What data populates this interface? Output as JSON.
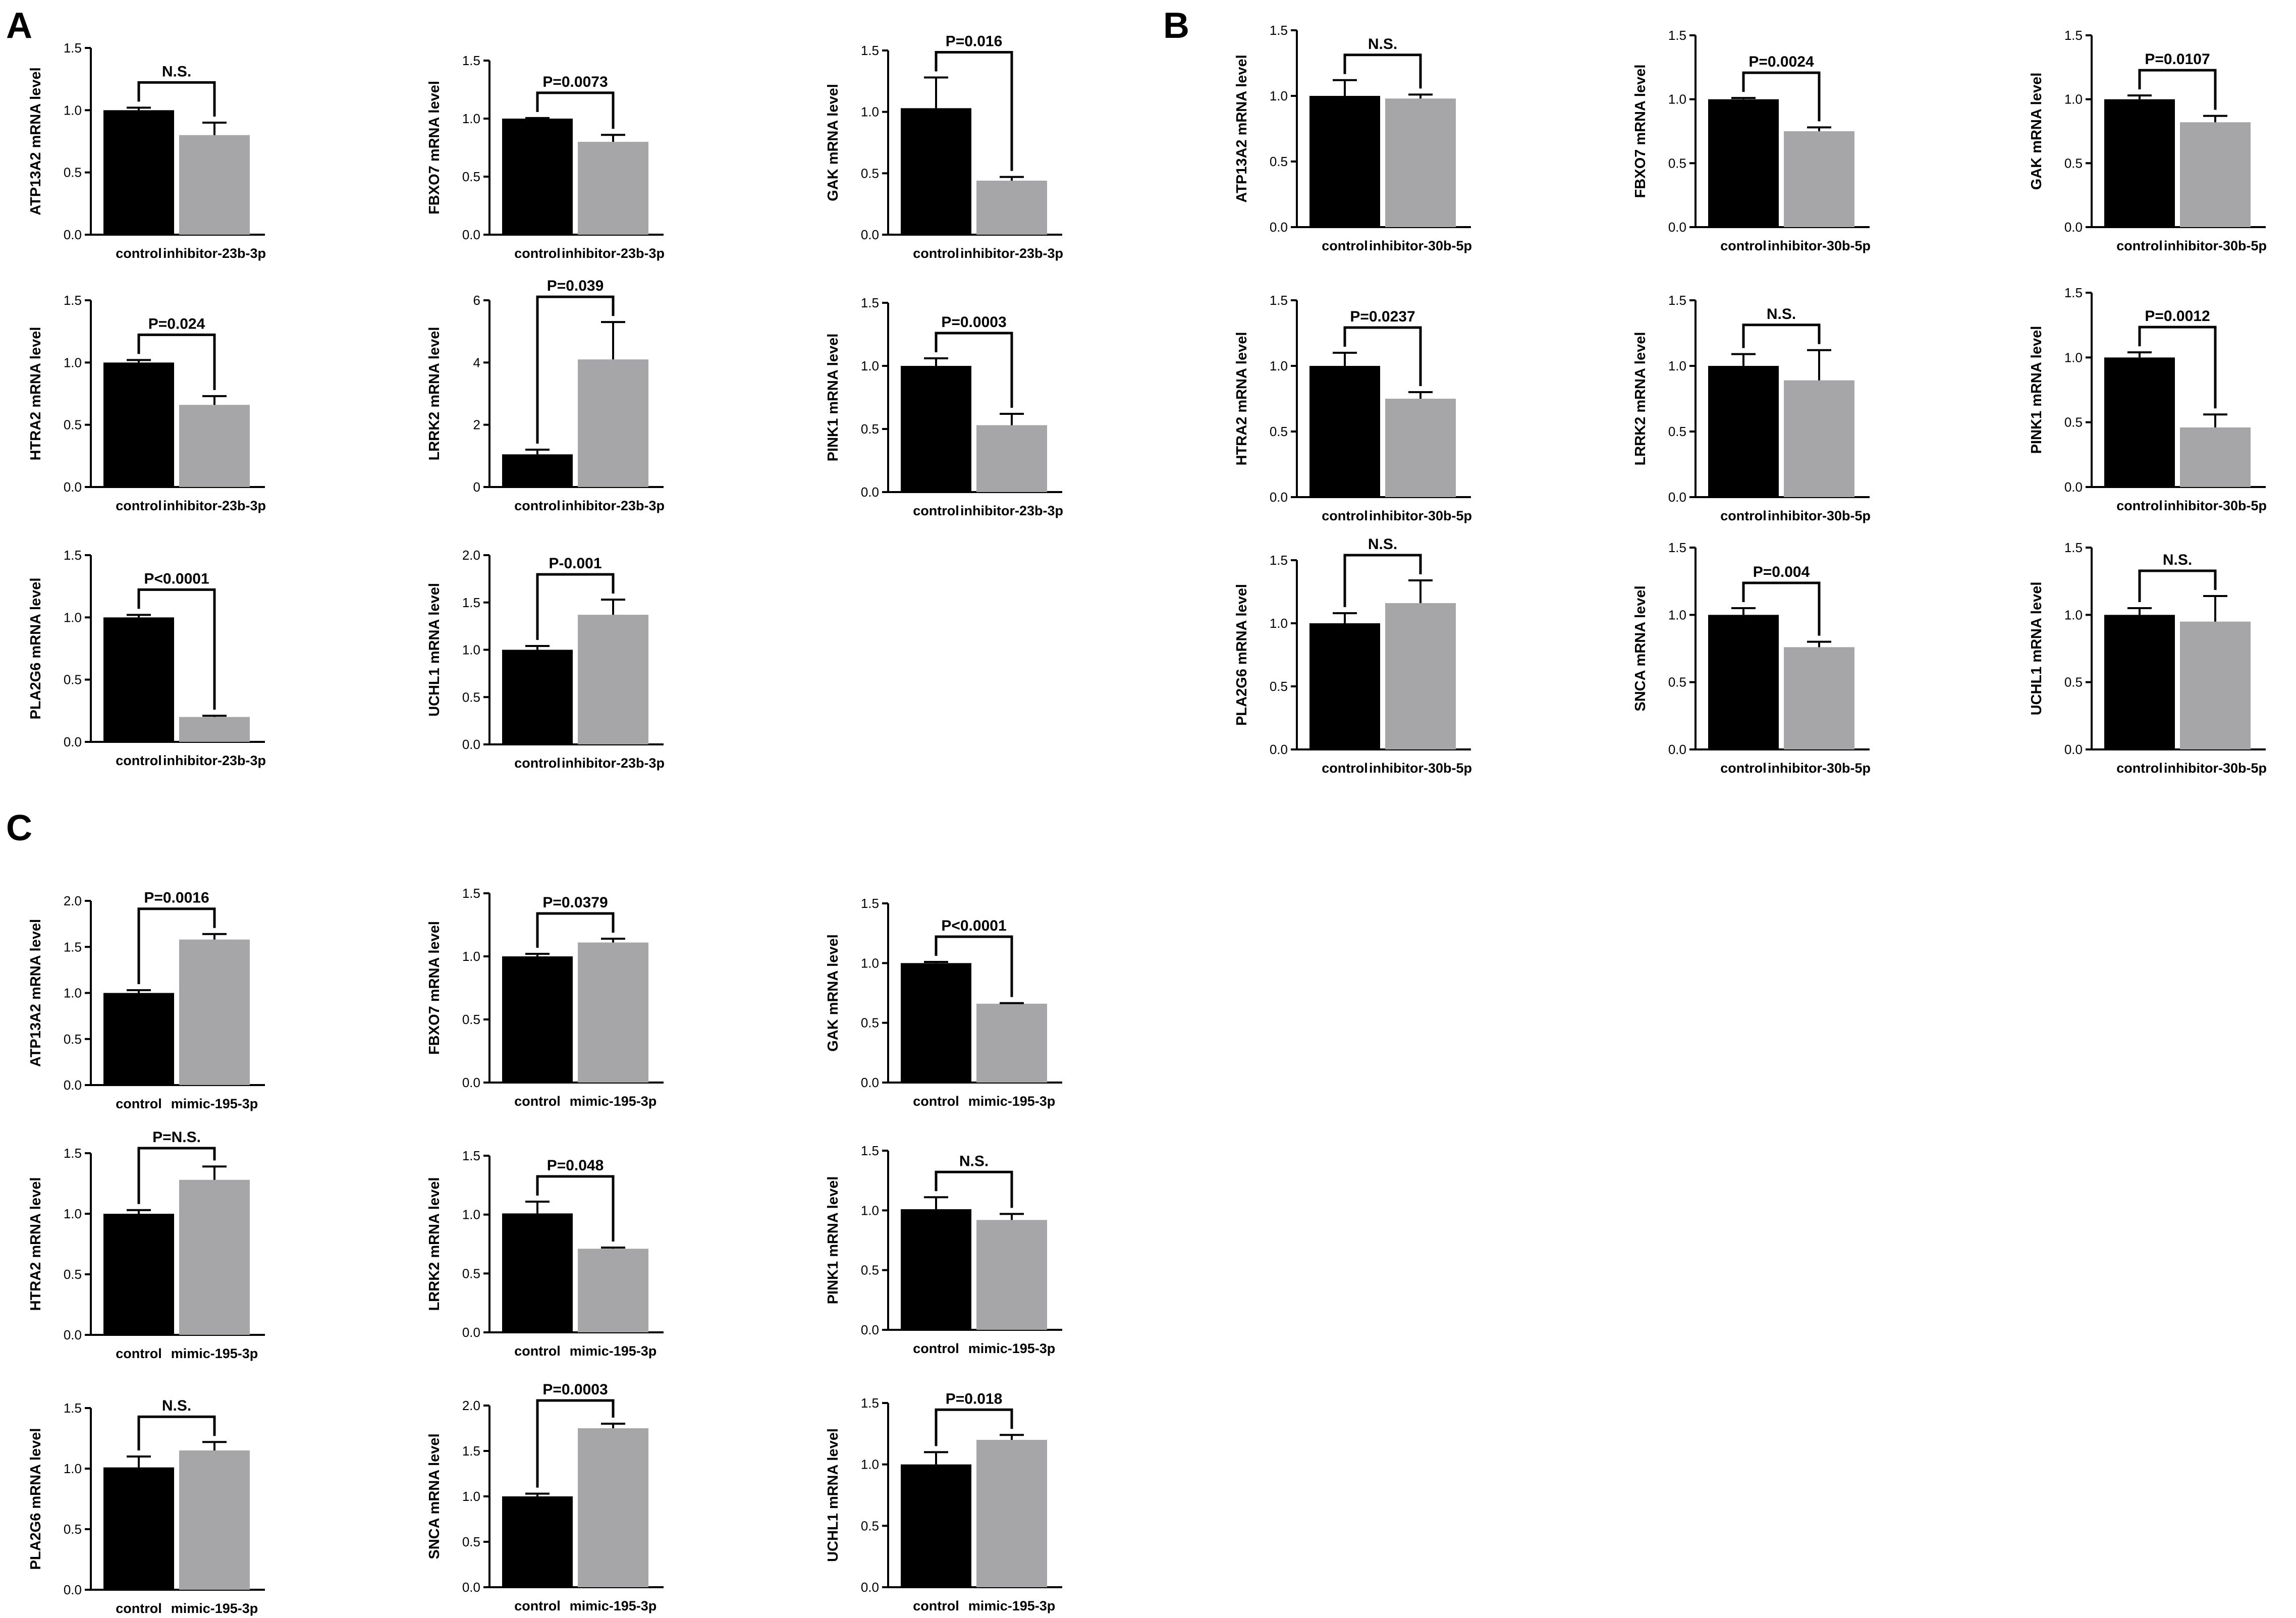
{
  "panels": [
    {
      "label": "A",
      "groups": [
        "control",
        "inhibitor-23b-3p"
      ],
      "charts": [
        {
          "type": "bar",
          "ylabel": "ATP13A2 mRNA level",
          "ylim": [
            0,
            1.5
          ],
          "ticks": [
            "0.0",
            "0.5",
            "1.0",
            "1.5"
          ],
          "values": [
            1.0,
            0.8
          ],
          "errors": [
            0.02,
            0.1
          ],
          "annotation": "N.S."
        },
        {
          "type": "bar",
          "ylabel": "FBXO7 mRNA level",
          "ylim": [
            0,
            1.5
          ],
          "ticks": [
            "0.0",
            "0.5",
            "1.0",
            "1.5"
          ],
          "values": [
            1.0,
            0.8
          ],
          "errors": [
            0.005,
            0.06
          ],
          "annotation": "P=0.0073"
        },
        {
          "type": "bar",
          "ylabel": "GAK mRNA level",
          "ylim": [
            0,
            1.5
          ],
          "ticks": [
            "0.0",
            "0.5",
            "1.0",
            "1.5"
          ],
          "values": [
            1.03,
            0.44
          ],
          "errors": [
            0.25,
            0.03
          ],
          "annotation": "P=0.016"
        },
        {
          "type": "bar",
          "ylabel": "HTRA2 mRNA level",
          "ylim": [
            0,
            1.5
          ],
          "ticks": [
            "0.0",
            "0.5",
            "1.0",
            "1.5"
          ],
          "values": [
            1.0,
            0.66
          ],
          "errors": [
            0.02,
            0.07
          ],
          "annotation": "P=0.024"
        },
        {
          "type": "bar",
          "ylabel": "LRRK2 mRNA level",
          "ylim": [
            0,
            6
          ],
          "ticks": [
            "0",
            "2",
            "4",
            "6"
          ],
          "values": [
            1.05,
            4.1
          ],
          "errors": [
            0.15,
            1.2
          ],
          "annotation": "P=0.039"
        },
        {
          "type": "bar",
          "ylabel": "PINK1 mRNA level",
          "ylim": [
            0,
            1.5
          ],
          "ticks": [
            "0.0",
            "0.5",
            "1.0",
            "1.5"
          ],
          "values": [
            1.0,
            0.53
          ],
          "errors": [
            0.06,
            0.09
          ],
          "annotation": "P=0.0003"
        },
        {
          "type": "bar",
          "ylabel": "PLA2G6 mRNA level",
          "ylim": [
            0,
            1.5
          ],
          "ticks": [
            "0.0",
            "0.5",
            "1.0",
            "1.5"
          ],
          "values": [
            1.0,
            0.2
          ],
          "errors": [
            0.02,
            0.01
          ],
          "annotation": "P<0.0001"
        },
        {
          "type": "bar",
          "ylabel": "UCHL1 mRNA level",
          "ylim": [
            0,
            2.0
          ],
          "ticks": [
            "0.0",
            "0.5",
            "1.0",
            "1.5",
            "2.0"
          ],
          "values": [
            1.0,
            1.37
          ],
          "errors": [
            0.04,
            0.16
          ],
          "annotation": "P-0.001"
        }
      ]
    },
    {
      "label": "B",
      "groups": [
        "control",
        "inhibitor-30b-5p"
      ],
      "charts": [
        {
          "type": "bar",
          "ylabel": "ATP13A2 mRNA level",
          "ylim": [
            0,
            1.5
          ],
          "ticks": [
            "0.0",
            "0.5",
            "1.0",
            "1.5"
          ],
          "values": [
            1.0,
            0.98
          ],
          "errors": [
            0.12,
            0.03
          ],
          "annotation": "N.S."
        },
        {
          "type": "bar",
          "ylabel": "FBXO7 mRNA level",
          "ylim": [
            0,
            1.5
          ],
          "ticks": [
            "0.0",
            "0.5",
            "1.0",
            "1.5"
          ],
          "values": [
            1.0,
            0.75
          ],
          "errors": [
            0.01,
            0.03
          ],
          "annotation": "P=0.0024"
        },
        {
          "type": "bar",
          "ylabel": "GAK mRNA level",
          "ylim": [
            0,
            1.5
          ],
          "ticks": [
            "0.0",
            "0.5",
            "1.0",
            "1.5"
          ],
          "values": [
            1.0,
            0.82
          ],
          "errors": [
            0.03,
            0.05
          ],
          "annotation": "P=0.0107"
        },
        {
          "type": "bar",
          "ylabel": "HTRA2 mRNA level",
          "ylim": [
            0,
            1.5
          ],
          "ticks": [
            "0.0",
            "0.5",
            "1.0",
            "1.5"
          ],
          "values": [
            1.0,
            0.75
          ],
          "errors": [
            0.1,
            0.05
          ],
          "annotation": "P=0.0237"
        },
        {
          "type": "bar",
          "ylabel": "LRRK2 mRNA level",
          "ylim": [
            0,
            1.5
          ],
          "ticks": [
            "0.0",
            "0.5",
            "1.0",
            "1.5"
          ],
          "values": [
            1.0,
            0.89
          ],
          "errors": [
            0.09,
            0.23
          ],
          "annotation": "N.S."
        },
        {
          "type": "bar",
          "ylabel": "PINK1 mRNA level",
          "ylim": [
            0,
            1.5
          ],
          "ticks": [
            "0.0",
            "0.5",
            "1.0",
            "1.5"
          ],
          "values": [
            1.0,
            0.46
          ],
          "errors": [
            0.04,
            0.1
          ],
          "annotation": "P=0.0012"
        },
        {
          "type": "bar",
          "ylabel": "PLA2G6 mRNA level",
          "ylim": [
            0,
            1.5
          ],
          "ticks": [
            "0.0",
            "0.5",
            "1.0",
            "1.5"
          ],
          "values": [
            1.0,
            1.16
          ],
          "errors": [
            0.08,
            0.18
          ],
          "annotation": "N.S."
        },
        {
          "type": "bar",
          "ylabel": "SNCA mRNA level",
          "ylim": [
            0,
            1.5
          ],
          "ticks": [
            "0.0",
            "0.5",
            "1.0",
            "1.5"
          ],
          "values": [
            1.0,
            0.76
          ],
          "errors": [
            0.05,
            0.04
          ],
          "annotation": "P=0.004"
        },
        {
          "type": "bar",
          "ylabel": "UCHL1 mRNA level",
          "ylim": [
            0,
            1.5
          ],
          "ticks": [
            "0.0",
            "0.5",
            "1.0",
            "1.5"
          ],
          "values": [
            1.0,
            0.95
          ],
          "errors": [
            0.05,
            0.19
          ],
          "annotation": "N.S."
        }
      ]
    },
    {
      "label": "C",
      "groups": [
        "control",
        "mimic-195-3p"
      ],
      "charts": [
        {
          "type": "bar",
          "ylabel": "ATP13A2 mRNA level",
          "ylim": [
            0,
            2.0
          ],
          "ticks": [
            "0.0",
            "0.5",
            "1.0",
            "1.5",
            "2.0"
          ],
          "values": [
            1.0,
            1.58
          ],
          "errors": [
            0.03,
            0.06
          ],
          "annotation": "P=0.0016"
        },
        {
          "type": "bar",
          "ylabel": "FBXO7 mRNA level",
          "ylim": [
            0,
            1.5
          ],
          "ticks": [
            "0.0",
            "0.5",
            "1.0",
            "1.5"
          ],
          "values": [
            1.0,
            1.11
          ],
          "errors": [
            0.02,
            0.03
          ],
          "annotation": "P=0.0379"
        },
        {
          "type": "bar",
          "ylabel": "GAK mRNA level",
          "ylim": [
            0,
            1.5
          ],
          "ticks": [
            "0.0",
            "0.5",
            "1.0",
            "1.5"
          ],
          "values": [
            1.0,
            0.66
          ],
          "errors": [
            0.01,
            0.005
          ],
          "annotation": "P<0.0001"
        },
        {
          "type": "bar",
          "ylabel": "HTRA2 mRNA level",
          "ylim": [
            0,
            1.5
          ],
          "ticks": [
            "0.0",
            "0.5",
            "1.0",
            "1.5"
          ],
          "values": [
            1.0,
            1.28
          ],
          "errors": [
            0.03,
            0.11
          ],
          "annotation": "P=N.S."
        },
        {
          "type": "bar",
          "ylabel": "LRRK2 mRNA level",
          "ylim": [
            0,
            1.5
          ],
          "ticks": [
            "0.0",
            "0.5",
            "1.0",
            "1.5"
          ],
          "values": [
            1.01,
            0.71
          ],
          "errors": [
            0.1,
            0.01
          ],
          "annotation": "P=0.048"
        },
        {
          "type": "bar",
          "ylabel": "PINK1 mRNA level",
          "ylim": [
            0,
            1.5
          ],
          "ticks": [
            "0.0",
            "0.5",
            "1.0",
            "1.5"
          ],
          "values": [
            1.01,
            0.92
          ],
          "errors": [
            0.1,
            0.05
          ],
          "annotation": "N.S."
        },
        {
          "type": "bar",
          "ylabel": "PLA2G6 mRNA level",
          "ylim": [
            0,
            1.5
          ],
          "ticks": [
            "0.0",
            "0.5",
            "1.0",
            "1.5"
          ],
          "values": [
            1.01,
            1.15
          ],
          "errors": [
            0.09,
            0.07
          ],
          "annotation": "N.S."
        },
        {
          "type": "bar",
          "ylabel": "SNCA mRNA level",
          "ylim": [
            0,
            2.0
          ],
          "ticks": [
            "0.0",
            "0.5",
            "1.0",
            "1.5",
            "2.0"
          ],
          "values": [
            1.0,
            1.75
          ],
          "errors": [
            0.03,
            0.05
          ],
          "annotation": "P=0.0003"
        },
        {
          "type": "bar",
          "ylabel": "UCHL1 mRNA level",
          "ylim": [
            0,
            1.5
          ],
          "ticks": [
            "0.0",
            "0.5",
            "1.0",
            "1.5"
          ],
          "values": [
            1.0,
            1.2
          ],
          "errors": [
            0.1,
            0.04
          ],
          "annotation": "P=0.018"
        }
      ]
    }
  ],
  "style": {
    "control_color": "#000000",
    "treatment_color": "#a6a6a8",
    "axis_color": "#000000"
  }
}
